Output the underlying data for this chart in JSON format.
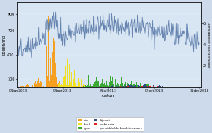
{
  "xlabel": "datum",
  "ylabel_left": "pollen/m3",
  "ylabel_right": "Gemiddelde klachtenscore",
  "ylim_left": [
    0,
    1050
  ],
  "ylim_right": [
    0,
    8
  ],
  "yticks_left": [
    100,
    400,
    700,
    900
  ],
  "yticks_right": [
    2,
    4,
    6
  ],
  "xticklabels": [
    "01jan2013",
    "01apr2013",
    "01jul2013",
    "01oct2013",
    "31dec2013"
  ],
  "xtick_positions": [
    0,
    89,
    181,
    273,
    364
  ],
  "bg_color": "#cddaeb",
  "plot_bg_color": "#d8e5f2",
  "colors": {
    "els": "#f5a020",
    "gras": "#3aaa35",
    "ambrosia": "#e02020",
    "berk": "#f0e020",
    "bijvoet": "#2e4e7e",
    "klachten": "#5878a8"
  },
  "legend_labels": [
    "els",
    "gras",
    "ambrosia",
    "berk",
    "bijvoet",
    "gemiddelde klachtenscore"
  ],
  "figsize": [
    2.7,
    1.7
  ],
  "dpi": 100
}
